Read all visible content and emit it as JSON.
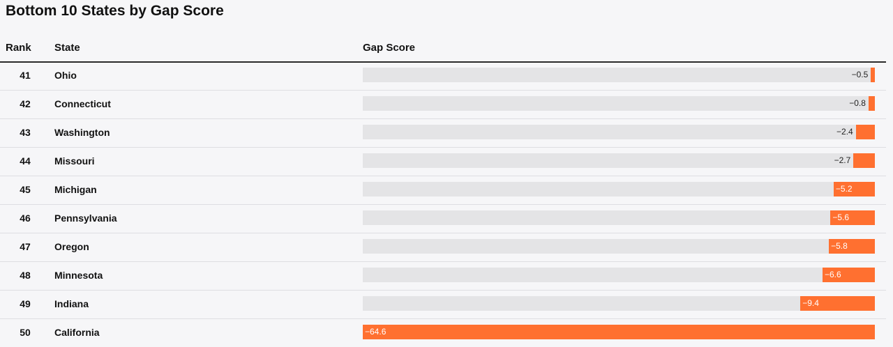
{
  "chart_data": {
    "type": "table",
    "title": "Bottom 10 States by Gap Score",
    "columns": [
      "Rank",
      "State",
      "Gap Score"
    ],
    "xlim": [
      -64.6,
      0
    ],
    "bar_color": "#ff7030",
    "track_color": "#e4e4e6",
    "rows": [
      {
        "rank": "41",
        "state": "Ohio",
        "value": -0.5,
        "label": "−0.5"
      },
      {
        "rank": "42",
        "state": "Connecticut",
        "value": -0.8,
        "label": "−0.8"
      },
      {
        "rank": "43",
        "state": "Washington",
        "value": -2.4,
        "label": "−2.4"
      },
      {
        "rank": "44",
        "state": "Missouri",
        "value": -2.7,
        "label": "−2.7"
      },
      {
        "rank": "45",
        "state": "Michigan",
        "value": -5.2,
        "label": "−5.2"
      },
      {
        "rank": "46",
        "state": "Pennsylvania",
        "value": -5.6,
        "label": "−5.6"
      },
      {
        "rank": "47",
        "state": "Oregon",
        "value": -5.8,
        "label": "−5.8"
      },
      {
        "rank": "48",
        "state": "Minnesota",
        "value": -6.6,
        "label": "−6.6"
      },
      {
        "rank": "49",
        "state": "Indiana",
        "value": -9.4,
        "label": "−9.4"
      },
      {
        "rank": "50",
        "state": "California",
        "value": -64.6,
        "label": "−64.6"
      }
    ]
  }
}
